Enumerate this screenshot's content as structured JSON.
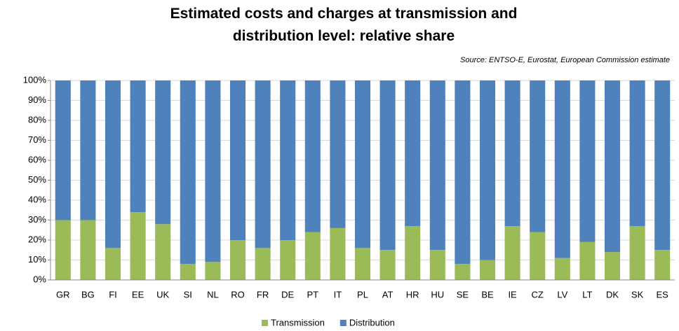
{
  "chart_data": {
    "type": "stacked_bar",
    "title": "Estimated costs and charges at transmission and distribution level: relative share",
    "source": "Source: ENTSO-E, Eurostat, European Commission estimate",
    "categories": [
      "GR",
      "BG",
      "FI",
      "EE",
      "UK",
      "SI",
      "NL",
      "RO",
      "FR",
      "DE",
      "PT",
      "IT",
      "PL",
      "AT",
      "HR",
      "HU",
      "SE",
      "BE",
      "IE",
      "CZ",
      "LV",
      "LT",
      "DK",
      "SK",
      "ES"
    ],
    "series": [
      {
        "name": "Transmission",
        "color": "#9bbb59",
        "values": [
          30,
          30,
          16,
          34,
          28,
          8,
          9,
          20,
          16,
          20,
          24,
          26,
          16,
          15,
          27,
          15,
          8,
          10,
          27,
          24,
          11,
          19,
          14,
          27,
          15
        ]
      },
      {
        "name": "Distribution",
        "color": "#4f81bd",
        "values": [
          70,
          70,
          84,
          66,
          72,
          92,
          91,
          80,
          84,
          80,
          76,
          74,
          84,
          85,
          73,
          85,
          92,
          90,
          73,
          76,
          89,
          81,
          86,
          73,
          85
        ]
      }
    ],
    "ylim": [
      0,
      100
    ],
    "yticks": [
      {
        "value": 0,
        "label": "0%"
      },
      {
        "value": 10,
        "label": "10%"
      },
      {
        "value": 20,
        "label": "20%"
      },
      {
        "value": 30,
        "label": "30%"
      },
      {
        "value": 40,
        "label": "40%"
      },
      {
        "value": 50,
        "label": "50%"
      },
      {
        "value": 60,
        "label": "60%"
      },
      {
        "value": 70,
        "label": "70%"
      },
      {
        "value": 80,
        "label": "80%"
      },
      {
        "value": 90,
        "label": "90%"
      },
      {
        "value": 100,
        "label": "100%"
      }
    ],
    "grid": true,
    "legend": "bottom"
  }
}
